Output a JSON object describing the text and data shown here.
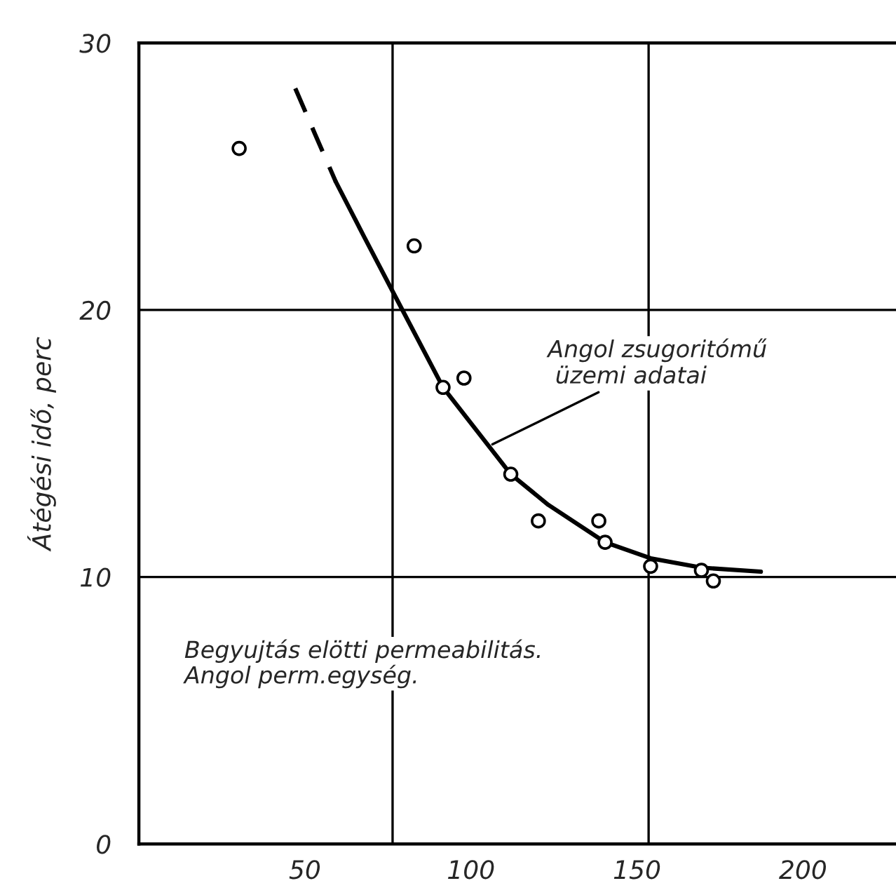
{
  "chart_data": {
    "type": "scatter",
    "ylabel": "Átégési idő, perc",
    "xlim": [
      0,
      228
    ],
    "ylim": [
      0,
      30
    ],
    "xticks": [
      50,
      100,
      150,
      200
    ],
    "yticks": [
      0,
      10,
      20,
      30
    ],
    "grid": "y",
    "series": [
      {
        "marker": "circle",
        "color": "#000000",
        "x": [
          30.2,
          82.9,
          91.6,
          97.9,
          112,
          120.3,
          138.5,
          140.4,
          154.1,
          169.4,
          173
        ],
        "values": [
          26.05,
          22.4,
          17.1,
          17.45,
          13.85,
          12.1,
          12.1,
          11.3,
          10.4,
          10.25,
          9.85
        ]
      },
      {
        "type": "line",
        "color": "#000000",
        "line_style": "dashed",
        "marker": "none",
        "x": [
          47.1,
          53,
          59.3
        ],
        "values": [
          28.3,
          26.6,
          24.8
        ]
      },
      {
        "type": "line",
        "color": "#000000",
        "line_style": "solid",
        "marker": "none",
        "x": [
          59.3,
          68,
          76.4,
          91.6,
          105.4,
          112,
          123.3,
          140.4,
          154.1,
          169.4,
          187.3
        ],
        "values": [
          24.8,
          22.7,
          20.7,
          17.1,
          14.9,
          13.85,
          12.7,
          11.3,
          10.7,
          10.35,
          10.2
        ]
      }
    ],
    "ref_lines": [
      {
        "axis": "x",
        "value": 76.4,
        "color": "#000000"
      },
      {
        "axis": "x",
        "value": 153.5,
        "color": "#000000"
      }
    ],
    "annotations": [
      {
        "text": "Angol zsugoritómű\n üzemi adatai",
        "x": 105.4,
        "y": 14.9
      },
      "Begyujtás elötti permeabilitás.\nAngol perm.egység."
    ]
  }
}
